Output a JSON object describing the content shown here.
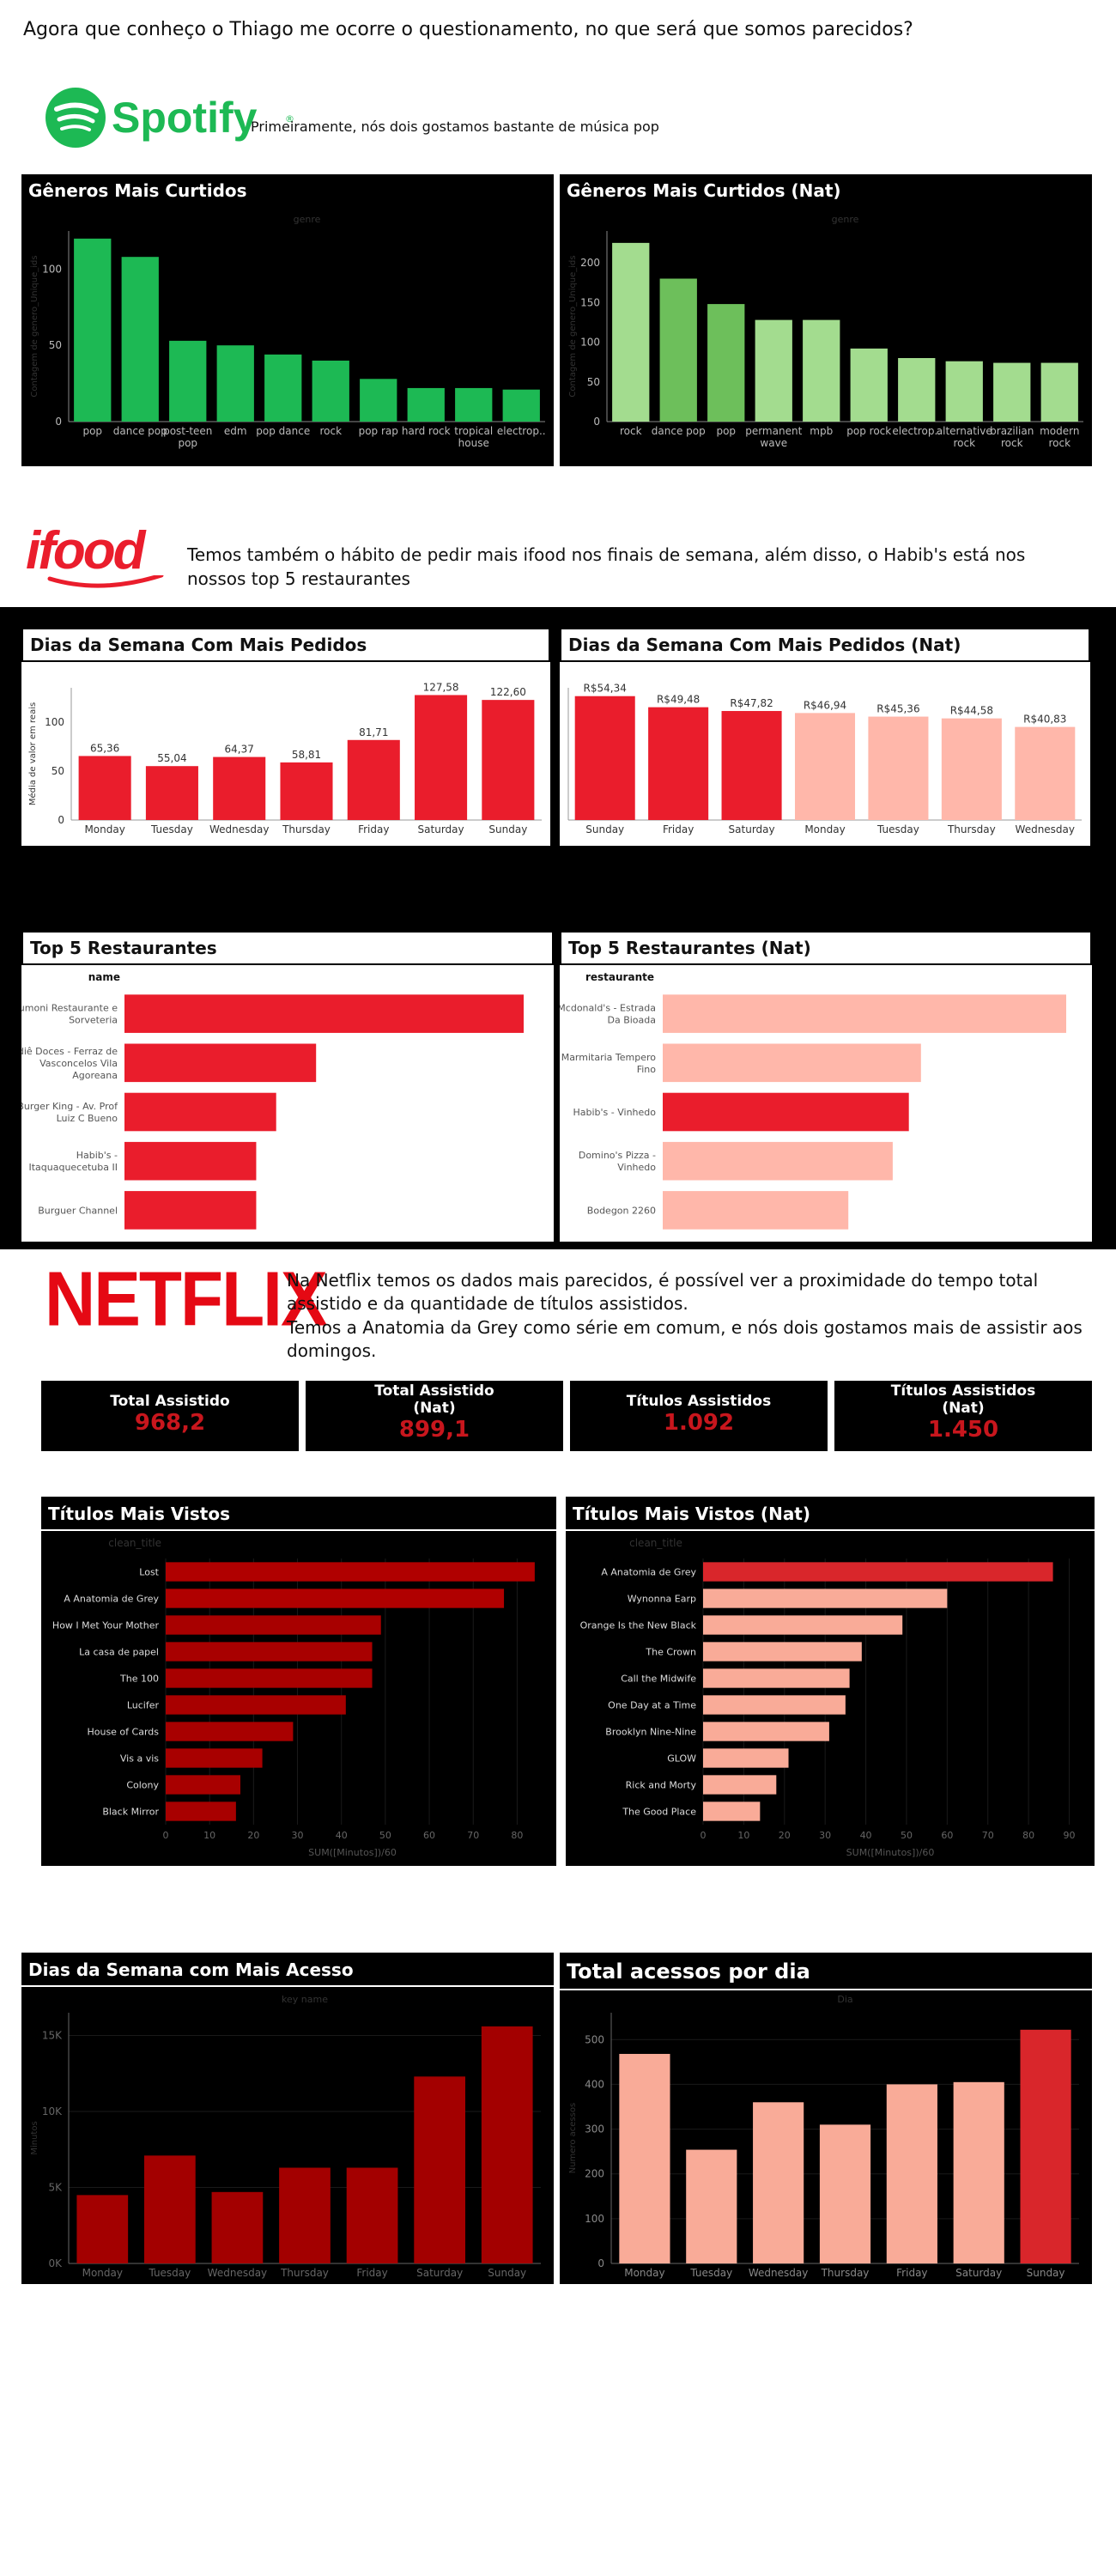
{
  "header": {
    "question": "Agora que conheço o Thiago me ocorre o questionamento, no que será que somos parecidos?"
  },
  "spotify": {
    "logo_text": "Spotify",
    "logo_mark": "®",
    "intro": "Primeiramente, nós dois gostamos bastante de música pop",
    "colors": {
      "green": "#1db954",
      "green_dark": "#22c55e",
      "nat_light": "#a3dc8f",
      "nat_mid": "#6dbf5b"
    }
  },
  "ifood": {
    "logo_text": "ifood",
    "intro": "Temos também o  hábito de pedir mais ifood nos finais de semana, além disso, o Habib's está nos nossos top 5 restaurantes",
    "colors": {
      "red": "#ea1d2c",
      "salmon": "#ffb7aa"
    }
  },
  "netflix": {
    "logo_text": "NETFLIX",
    "intro_line1": "Na Netflix temos os dados mais parecidos, é possível ver a proximidade do tempo total assistido e da quantidade de títulos assistidos.",
    "intro_line2": "Temos a Anatomia da Grey como série em comum, e nós dois gostamos mais de assistir aos domingos.",
    "colors": {
      "red": "#e50914",
      "dark_red": "#b00000",
      "salmon": "#f9ab98",
      "highlight": "#d9262b"
    },
    "kpis": [
      {
        "label": "Total Assistido",
        "value": "968,2"
      },
      {
        "label": "Total Assistido\n(Nat)",
        "value": "899,1"
      },
      {
        "label": "Títulos Assistidos",
        "value": "1.092"
      },
      {
        "label": "Títulos Assistidos\n(Nat)",
        "value": "1.450"
      }
    ]
  },
  "chart_data": [
    {
      "id": "genres",
      "type": "bar",
      "title": "Gêneros Mais Curtidos",
      "header": "genre",
      "ylabel": "Contagem de genero_Unique_ids",
      "ylim": [
        0,
        125
      ],
      "yticks": [
        0,
        50,
        100
      ],
      "categories": [
        "pop",
        "dance pop",
        "post-teen pop",
        "edm",
        "pop dance",
        "rock",
        "pop rap",
        "hard rock",
        "tropical house",
        "electrop.."
      ],
      "values": [
        120,
        108,
        53,
        50,
        44,
        40,
        28,
        22,
        22,
        21
      ]
    },
    {
      "id": "genres_nat",
      "type": "bar",
      "title": "Gêneros Mais Curtidos (Nat)",
      "header": "genre",
      "ylabel": "Contagem de genero_Unique_ids",
      "ylim": [
        0,
        240
      ],
      "yticks": [
        0,
        50,
        100,
        150,
        200
      ],
      "categories": [
        "rock",
        "dance pop",
        "pop",
        "permanent wave",
        "mpb",
        "pop rock",
        "electrop..",
        "alternative rock",
        "brazilian rock",
        "modern rock"
      ],
      "values": [
        225,
        180,
        148,
        128,
        128,
        92,
        80,
        76,
        74,
        74
      ]
    },
    {
      "id": "weekday_orders",
      "type": "bar",
      "title": "Dias da Semana Com Mais Pedidos",
      "ylabel": "Média de valor em reais",
      "ylim": [
        0,
        135
      ],
      "yticks": [
        0,
        50,
        100
      ],
      "categories": [
        "Monday",
        "Tuesday",
        "Wednesday",
        "Thursday",
        "Friday",
        "Saturday",
        "Sunday"
      ],
      "values": [
        65.36,
        55.04,
        64.37,
        58.81,
        81.71,
        127.58,
        122.6
      ],
      "labels": [
        "65,36",
        "55,04",
        "64,37",
        "58,81",
        "81,71",
        "127,58",
        "122,60"
      ]
    },
    {
      "id": "weekday_orders_nat",
      "type": "bar",
      "title": "Dias da Semana Com Mais Pedidos (Nat)",
      "ylim": [
        0,
        58
      ],
      "categories": [
        "Sunday",
        "Friday",
        "Saturday",
        "Monday",
        "Tuesday",
        "Thursday",
        "Wednesday"
      ],
      "values": [
        54.34,
        49.48,
        47.82,
        46.94,
        45.36,
        44.58,
        40.83
      ],
      "labels": [
        "R$54,34",
        "R$49,48",
        "R$47,82",
        "R$46,94",
        "R$45,36",
        "R$44,58",
        "R$40,83"
      ]
    },
    {
      "id": "top_restaurants",
      "type": "bar",
      "orientation": "horizontal",
      "title": "Top 5 Restaurantes",
      "header": "name",
      "categories": [
        "Spumoni Restaurante e Sorveteria",
        "Sodiê Doces - Ferraz de Vasconcelos Vila Agoreana",
        "Burger King - Av. Prof Luiz C Bueno",
        "Habib's - Itaquaquecetuba II",
        "Burguer Channel"
      ],
      "values": [
        100,
        48,
        38,
        33,
        33
      ]
    },
    {
      "id": "top_restaurants_nat",
      "type": "bar",
      "orientation": "horizontal",
      "title": "Top 5 Restaurantes (Nat)",
      "header": "restaurante",
      "categories": [
        "Mcdonald's - Estrada Da Bioada",
        "Marmitaria Tempero Fino",
        "Habib's - Vinhedo",
        "Domino's Pizza - Vinhedo",
        "Bodegon 2260"
      ],
      "values": [
        100,
        64,
        61,
        57,
        46
      ]
    },
    {
      "id": "top_titles",
      "type": "bar",
      "orientation": "horizontal",
      "title": "Títulos Mais Vistos",
      "header": "clean_title",
      "xlabel": "SUM([Minutos])/60",
      "xlim": [
        0,
        85
      ],
      "xticks": [
        0,
        10,
        20,
        30,
        40,
        50,
        60,
        70,
        80
      ],
      "categories": [
        "Lost",
        "A Anatomia de Grey",
        "How I Met Your Mother",
        "La casa de papel",
        "The 100",
        "Lucifer",
        "House of Cards",
        "Vis a vis",
        "Colony",
        "Black Mirror"
      ],
      "values": [
        84,
        77,
        49,
        47,
        47,
        41,
        29,
        22,
        17,
        16
      ]
    },
    {
      "id": "top_titles_nat",
      "type": "bar",
      "orientation": "horizontal",
      "title": "Títulos Mais Vistos (Nat)",
      "header": "clean_title",
      "xlabel": "SUM([Minutos])/60",
      "xlim": [
        0,
        92
      ],
      "xticks": [
        0,
        10,
        20,
        30,
        40,
        50,
        60,
        70,
        80,
        90
      ],
      "categories": [
        "A Anatomia de Grey",
        "Wynonna Earp",
        "Orange Is the New Black",
        "The Crown",
        "Call the Midwife",
        "One Day at a Time",
        "Brooklyn Nine-Nine",
        "GLOW",
        "Rick and Morty",
        "The Good Place"
      ],
      "values": [
        86,
        60,
        49,
        39,
        36,
        35,
        31,
        21,
        18,
        14
      ]
    },
    {
      "id": "weekday_access",
      "type": "bar",
      "title": "Dias da Semana com Mais Acesso",
      "header": "key name",
      "ylabel": "Minutos",
      "ylim": [
        0,
        16500
      ],
      "yticks": [
        0,
        5000,
        10000,
        15000
      ],
      "ytick_labels": [
        "0K",
        "5K",
        "10K",
        "15K"
      ],
      "categories": [
        "Monday",
        "Tuesday",
        "Wednesday",
        "Thursday",
        "Friday",
        "Saturday",
        "Sunday"
      ],
      "values": [
        4500,
        7100,
        4700,
        6300,
        6300,
        12300,
        15600
      ]
    },
    {
      "id": "daily_access_nat",
      "type": "bar",
      "title": "Total acessos por dia",
      "header": "Dia",
      "ylabel": "Numero acessos",
      "ylim": [
        0,
        560
      ],
      "yticks": [
        0,
        100,
        200,
        300,
        400,
        500
      ],
      "categories": [
        "Monday",
        "Tuesday",
        "Wednesday",
        "Thursday",
        "Friday",
        "Saturday",
        "Sunday"
      ],
      "values": [
        468,
        254,
        360,
        310,
        400,
        405,
        522
      ]
    }
  ]
}
